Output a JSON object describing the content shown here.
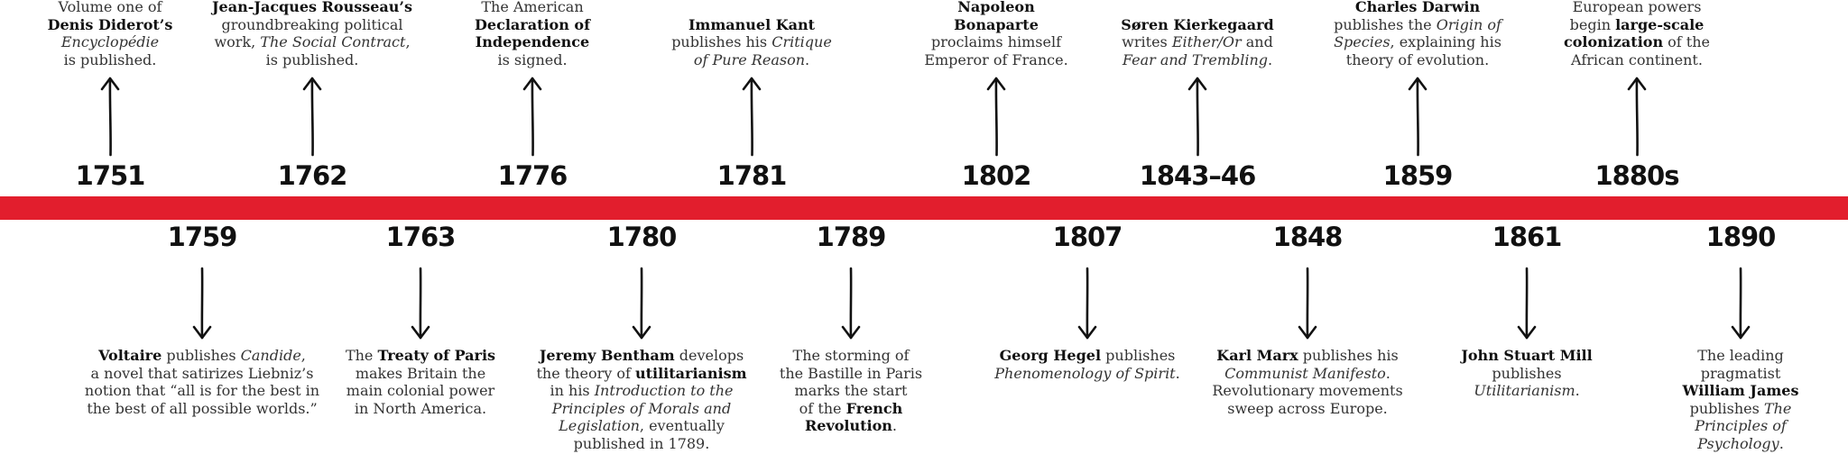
{
  "colors": {
    "timeline": "#e21e2d",
    "text": "#222222"
  },
  "events_top": [
    {
      "year": "1751",
      "parts": [
        [
          "t",
          "Volume one of"
        ],
        [
          "br"
        ],
        [
          "b",
          "Denis Diderot’s"
        ],
        [
          "br"
        ],
        [
          "i",
          "Encyclopédie"
        ],
        [
          "br"
        ],
        [
          "t",
          "is published."
        ]
      ]
    },
    {
      "year": "1762",
      "parts": [
        [
          "b",
          "Jean-Jacques Rousseau’s"
        ],
        [
          "br"
        ],
        [
          "t",
          "groundbreaking political"
        ],
        [
          "br"
        ],
        [
          "t",
          "work, "
        ],
        [
          "i",
          "The Social Contract"
        ],
        [
          "t",
          ","
        ],
        [
          "br"
        ],
        [
          "t",
          "is published."
        ]
      ]
    },
    {
      "year": "1776",
      "parts": [
        [
          "t",
          "The American"
        ],
        [
          "br"
        ],
        [
          "b",
          "Declaration of"
        ],
        [
          "br"
        ],
        [
          "b",
          "Independence"
        ],
        [
          "br"
        ],
        [
          "t",
          "is signed."
        ]
      ]
    },
    {
      "year": "1781",
      "parts": [
        [
          "b",
          "Immanuel Kant"
        ],
        [
          "br"
        ],
        [
          "t",
          "publishes his "
        ],
        [
          "i",
          "Critique"
        ],
        [
          "br"
        ],
        [
          "i",
          "of Pure Reason"
        ],
        [
          "t",
          "."
        ]
      ]
    },
    {
      "year": "1802",
      "parts": [
        [
          "b",
          "Napoleon"
        ],
        [
          "br"
        ],
        [
          "b",
          "Bonaparte"
        ],
        [
          "br"
        ],
        [
          "t",
          "proclaims himself"
        ],
        [
          "br"
        ],
        [
          "t",
          "Emperor of France."
        ]
      ]
    },
    {
      "year": "1843–46",
      "parts": [
        [
          "b",
          "Søren Kierkegaard"
        ],
        [
          "br"
        ],
        [
          "t",
          "writes "
        ],
        [
          "i",
          "Either/Or"
        ],
        [
          "t",
          " and"
        ],
        [
          "br"
        ],
        [
          "i",
          "Fear and Trembling"
        ],
        [
          "t",
          "."
        ]
      ]
    },
    {
      "year": "1859",
      "parts": [
        [
          "b",
          "Charles Darwin"
        ],
        [
          "br"
        ],
        [
          "t",
          "publishes the "
        ],
        [
          "i",
          "Origin of"
        ],
        [
          "br"
        ],
        [
          "i",
          "Species"
        ],
        [
          "t",
          ", explaining his"
        ],
        [
          "br"
        ],
        [
          "t",
          "theory of evolution."
        ]
      ]
    },
    {
      "year": "1880s",
      "parts": [
        [
          "t",
          "European powers"
        ],
        [
          "br"
        ],
        [
          "t",
          "begin "
        ],
        [
          "b",
          "large-scale"
        ],
        [
          "br"
        ],
        [
          "b",
          "colonization"
        ],
        [
          "t",
          " of the"
        ],
        [
          "br"
        ],
        [
          "t",
          "African continent."
        ]
      ]
    }
  ],
  "events_bottom": [
    {
      "year": "1759",
      "parts": [
        [
          "b",
          "Voltaire"
        ],
        [
          "t",
          " publishes "
        ],
        [
          "i",
          "Candide"
        ],
        [
          "t",
          ","
        ],
        [
          "br"
        ],
        [
          "t",
          "a novel that satirizes Liebniz’s"
        ],
        [
          "br"
        ],
        [
          "t",
          "notion that “all is for the best in"
        ],
        [
          "br"
        ],
        [
          "t",
          "the best of all possible worlds.”"
        ]
      ]
    },
    {
      "year": "1763",
      "parts": [
        [
          "t",
          "The "
        ],
        [
          "b",
          "Treaty of Paris"
        ],
        [
          "br"
        ],
        [
          "t",
          "makes Britain the"
        ],
        [
          "br"
        ],
        [
          "t",
          "main colonial power"
        ],
        [
          "br"
        ],
        [
          "t",
          "in North America."
        ]
      ]
    },
    {
      "year": "1780",
      "parts": [
        [
          "b",
          "Jeremy Bentham"
        ],
        [
          "t",
          " develops"
        ],
        [
          "br"
        ],
        [
          "t",
          "the theory of "
        ],
        [
          "b",
          "utilitarianism"
        ],
        [
          "br"
        ],
        [
          "t",
          "in his "
        ],
        [
          "i",
          "Introduction to the"
        ],
        [
          "br"
        ],
        [
          "i",
          "Principles of Morals and"
        ],
        [
          "br"
        ],
        [
          "i",
          "Legislation"
        ],
        [
          "t",
          ", eventually"
        ],
        [
          "br"
        ],
        [
          "t",
          "published in 1789."
        ]
      ]
    },
    {
      "year": "1789",
      "parts": [
        [
          "t",
          "The storming of"
        ],
        [
          "br"
        ],
        [
          "t",
          "the Bastille in Paris"
        ],
        [
          "br"
        ],
        [
          "t",
          "marks the start"
        ],
        [
          "br"
        ],
        [
          "t",
          "of the "
        ],
        [
          "b",
          "French"
        ],
        [
          "br"
        ],
        [
          "b",
          "Revolution"
        ],
        [
          "t",
          "."
        ]
      ]
    },
    {
      "year": "1807",
      "parts": [
        [
          "b",
          "Georg Hegel"
        ],
        [
          "t",
          " publishes"
        ],
        [
          "br"
        ],
        [
          "i",
          "Phenomenology of Spirit"
        ],
        [
          "t",
          "."
        ]
      ]
    },
    {
      "year": "1848",
      "parts": [
        [
          "b",
          "Karl Marx"
        ],
        [
          "t",
          " publishes his"
        ],
        [
          "br"
        ],
        [
          "i",
          "Communist Manifesto"
        ],
        [
          "t",
          "."
        ],
        [
          "br"
        ],
        [
          "t",
          "Revolutionary movements"
        ],
        [
          "br"
        ],
        [
          "t",
          "sweep across Europe."
        ]
      ]
    },
    {
      "year": "1861",
      "parts": [
        [
          "b",
          "John Stuart Mill"
        ],
        [
          "br"
        ],
        [
          "t",
          "publishes"
        ],
        [
          "br"
        ],
        [
          "i",
          "Utilitarianism"
        ],
        [
          "t",
          "."
        ]
      ]
    },
    {
      "year": "1890",
      "parts": [
        [
          "t",
          "The leading"
        ],
        [
          "br"
        ],
        [
          "t",
          "pragmatist"
        ],
        [
          "br"
        ],
        [
          "b",
          "William James"
        ],
        [
          "br"
        ],
        [
          "t",
          "publishes "
        ],
        [
          "i",
          "The"
        ],
        [
          "br"
        ],
        [
          "i",
          "Principles of"
        ],
        [
          "br"
        ],
        [
          "i",
          "Psychology"
        ],
        [
          "t",
          "."
        ]
      ]
    }
  ]
}
